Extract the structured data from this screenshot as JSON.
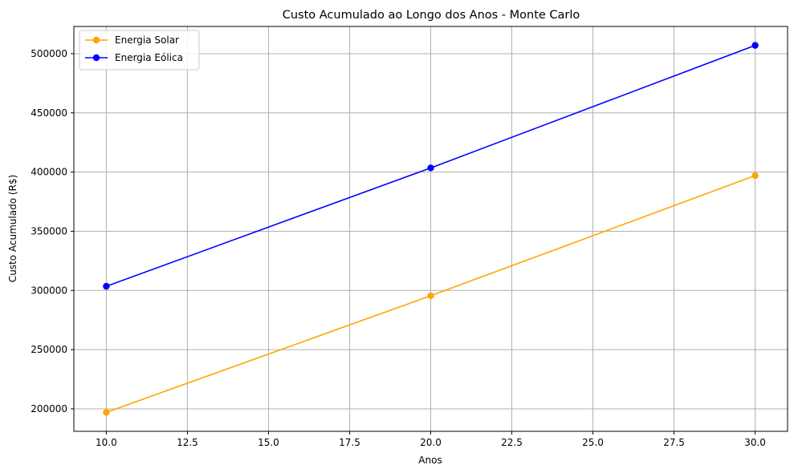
{
  "chart_data": {
    "type": "line",
    "title": "Custo Acumulado ao Longo dos Anos - Monte Carlo",
    "xlabel": "Anos",
    "ylabel": "Custo Acumulado (R$)",
    "x": [
      10,
      20,
      30
    ],
    "xlim": [
      9,
      31
    ],
    "ylim": [
      181000,
      523000
    ],
    "xticks": [
      10.0,
      12.5,
      15.0,
      17.5,
      20.0,
      22.5,
      25.0,
      27.5,
      30.0
    ],
    "xtick_labels": [
      "10.0",
      "12.5",
      "15.0",
      "17.5",
      "20.0",
      "22.5",
      "25.0",
      "27.5",
      "30.0"
    ],
    "yticks": [
      200000,
      250000,
      300000,
      350000,
      400000,
      450000,
      500000
    ],
    "ytick_labels": [
      "200000",
      "250000",
      "300000",
      "350000",
      "400000",
      "450000",
      "500000"
    ],
    "grid": true,
    "legend_position": "top-left",
    "series": [
      {
        "name": "Energia Solar",
        "color": "#FFA500",
        "marker": "circle",
        "values": [
          197000,
          295500,
          397000
        ]
      },
      {
        "name": "Energia Eólica",
        "color": "#0000FF",
        "marker": "circle",
        "values": [
          303500,
          403500,
          507000
        ]
      }
    ]
  }
}
